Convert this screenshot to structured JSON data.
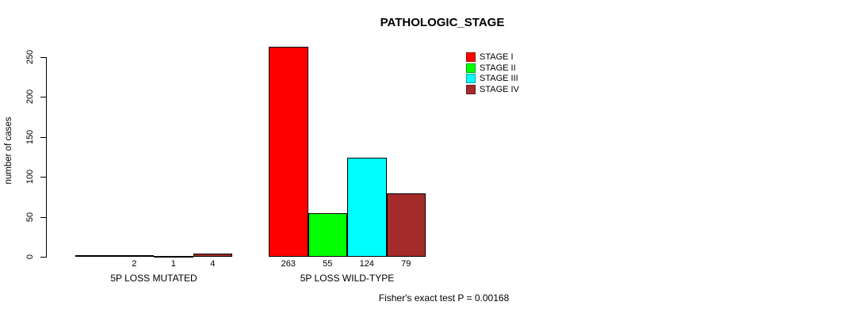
{
  "chart_data": {
    "type": "bar",
    "title": "PATHOLOGIC_STAGE",
    "ylabel": "number of cases",
    "xlabel": "",
    "ylim": [
      0,
      250
    ],
    "yticks": [
      0,
      50,
      100,
      150,
      200,
      250
    ],
    "categories": [
      "5P LOSS MUTATED",
      "5P LOSS WILD-TYPE"
    ],
    "series": [
      {
        "name": "STAGE I",
        "color": "#ff0000",
        "values": [
          0,
          263
        ]
      },
      {
        "name": "STAGE II",
        "color": "#00ff00",
        "values": [
          2,
          55
        ]
      },
      {
        "name": "STAGE III",
        "color": "#00ffff",
        "values": [
          1,
          124
        ]
      },
      {
        "name": "STAGE IV",
        "color": "#a52a2a",
        "values": [
          4,
          79
        ]
      }
    ],
    "bar_value_labels": [
      [
        "",
        "2",
        "1",
        "4"
      ],
      [
        "263",
        "55",
        "124",
        "79"
      ]
    ],
    "legend_position": "top-right",
    "grid": false,
    "annotation": "Fisher's exact test P = 0.00168"
  }
}
